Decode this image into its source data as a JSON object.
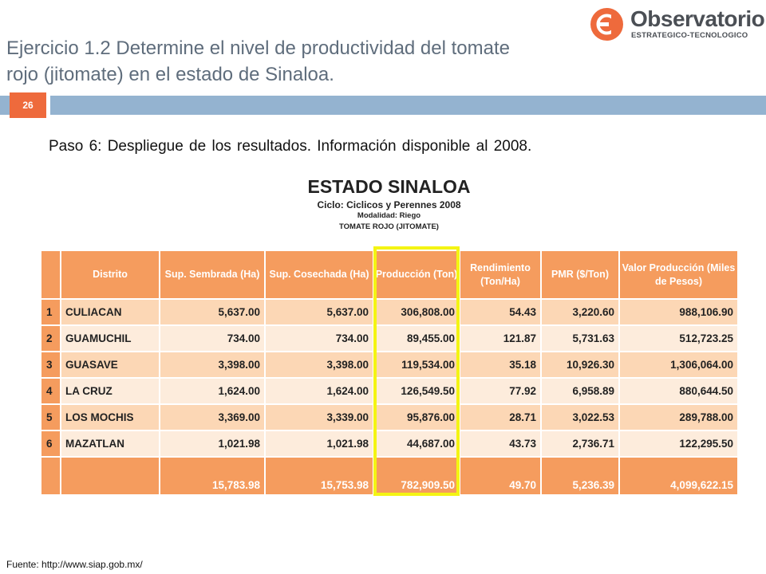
{
  "slide": {
    "title_line1": "Ejercicio 1.2 Determine el nivel de productividad del tomate",
    "title_line2": "rojo (jitomate) en el estado de Sinaloa.",
    "page_number": "26",
    "step_text": "Paso 6: Despliegue de los resultados. Información disponible al 2008.",
    "source_text": "Fuente: http://www.siap.gob.mx/"
  },
  "logo": {
    "name": "Observatorio",
    "subtitle": "ESTRATEGICO-TECNOLOGICO",
    "icon": "observatorio-logo-icon",
    "color": "#ee6a3c"
  },
  "colors": {
    "accent_orange": "#ee6a3c",
    "band_blue": "#94b3d0",
    "table_header": "#f59c5e",
    "row_dark": "#fcd7b5",
    "row_light": "#fdecdc",
    "highlight": "#f4f413"
  },
  "table": {
    "title": "ESTADO SINALOA",
    "cycle": "Ciclo: Ciclicos y Perennes 2008",
    "modality": "Modalidad: Riego",
    "crop": "TOMATE ROJO (JITOMATE)",
    "headers": [
      "",
      "Distrito",
      "Sup. Sembrada (Ha)",
      "Sup. Cosechada (Ha)",
      "Producción (Ton)",
      "Rendimiento (Ton/Ha)",
      "PMR ($/Ton)",
      "Valor Producción (Miles de Pesos)"
    ],
    "rows": [
      [
        "1",
        "CULIACAN",
        "5,637.00",
        "5,637.00",
        "306,808.00",
        "54.43",
        "3,220.60",
        "988,106.90"
      ],
      [
        "2",
        "GUAMUCHIL",
        "734.00",
        "734.00",
        "89,455.00",
        "121.87",
        "5,731.63",
        "512,723.25"
      ],
      [
        "3",
        "GUASAVE",
        "3,398.00",
        "3,398.00",
        "119,534.00",
        "35.18",
        "10,926.30",
        "1,306,064.00"
      ],
      [
        "4",
        "LA CRUZ",
        "1,624.00",
        "1,624.00",
        "126,549.50",
        "77.92",
        "6,958.89",
        "880,644.50"
      ],
      [
        "5",
        "LOS MOCHIS",
        "3,369.00",
        "3,339.00",
        "95,876.00",
        "28.71",
        "3,022.53",
        "289,788.00"
      ],
      [
        "6",
        "MAZATLAN",
        "1,021.98",
        "1,021.98",
        "44,687.00",
        "43.73",
        "2,736.71",
        "122,295.50"
      ]
    ],
    "totals": [
      "",
      "",
      "15,783.98",
      "15,753.98",
      "782,909.50",
      "49.70",
      "5,236.39",
      "4,099,622.15"
    ]
  }
}
